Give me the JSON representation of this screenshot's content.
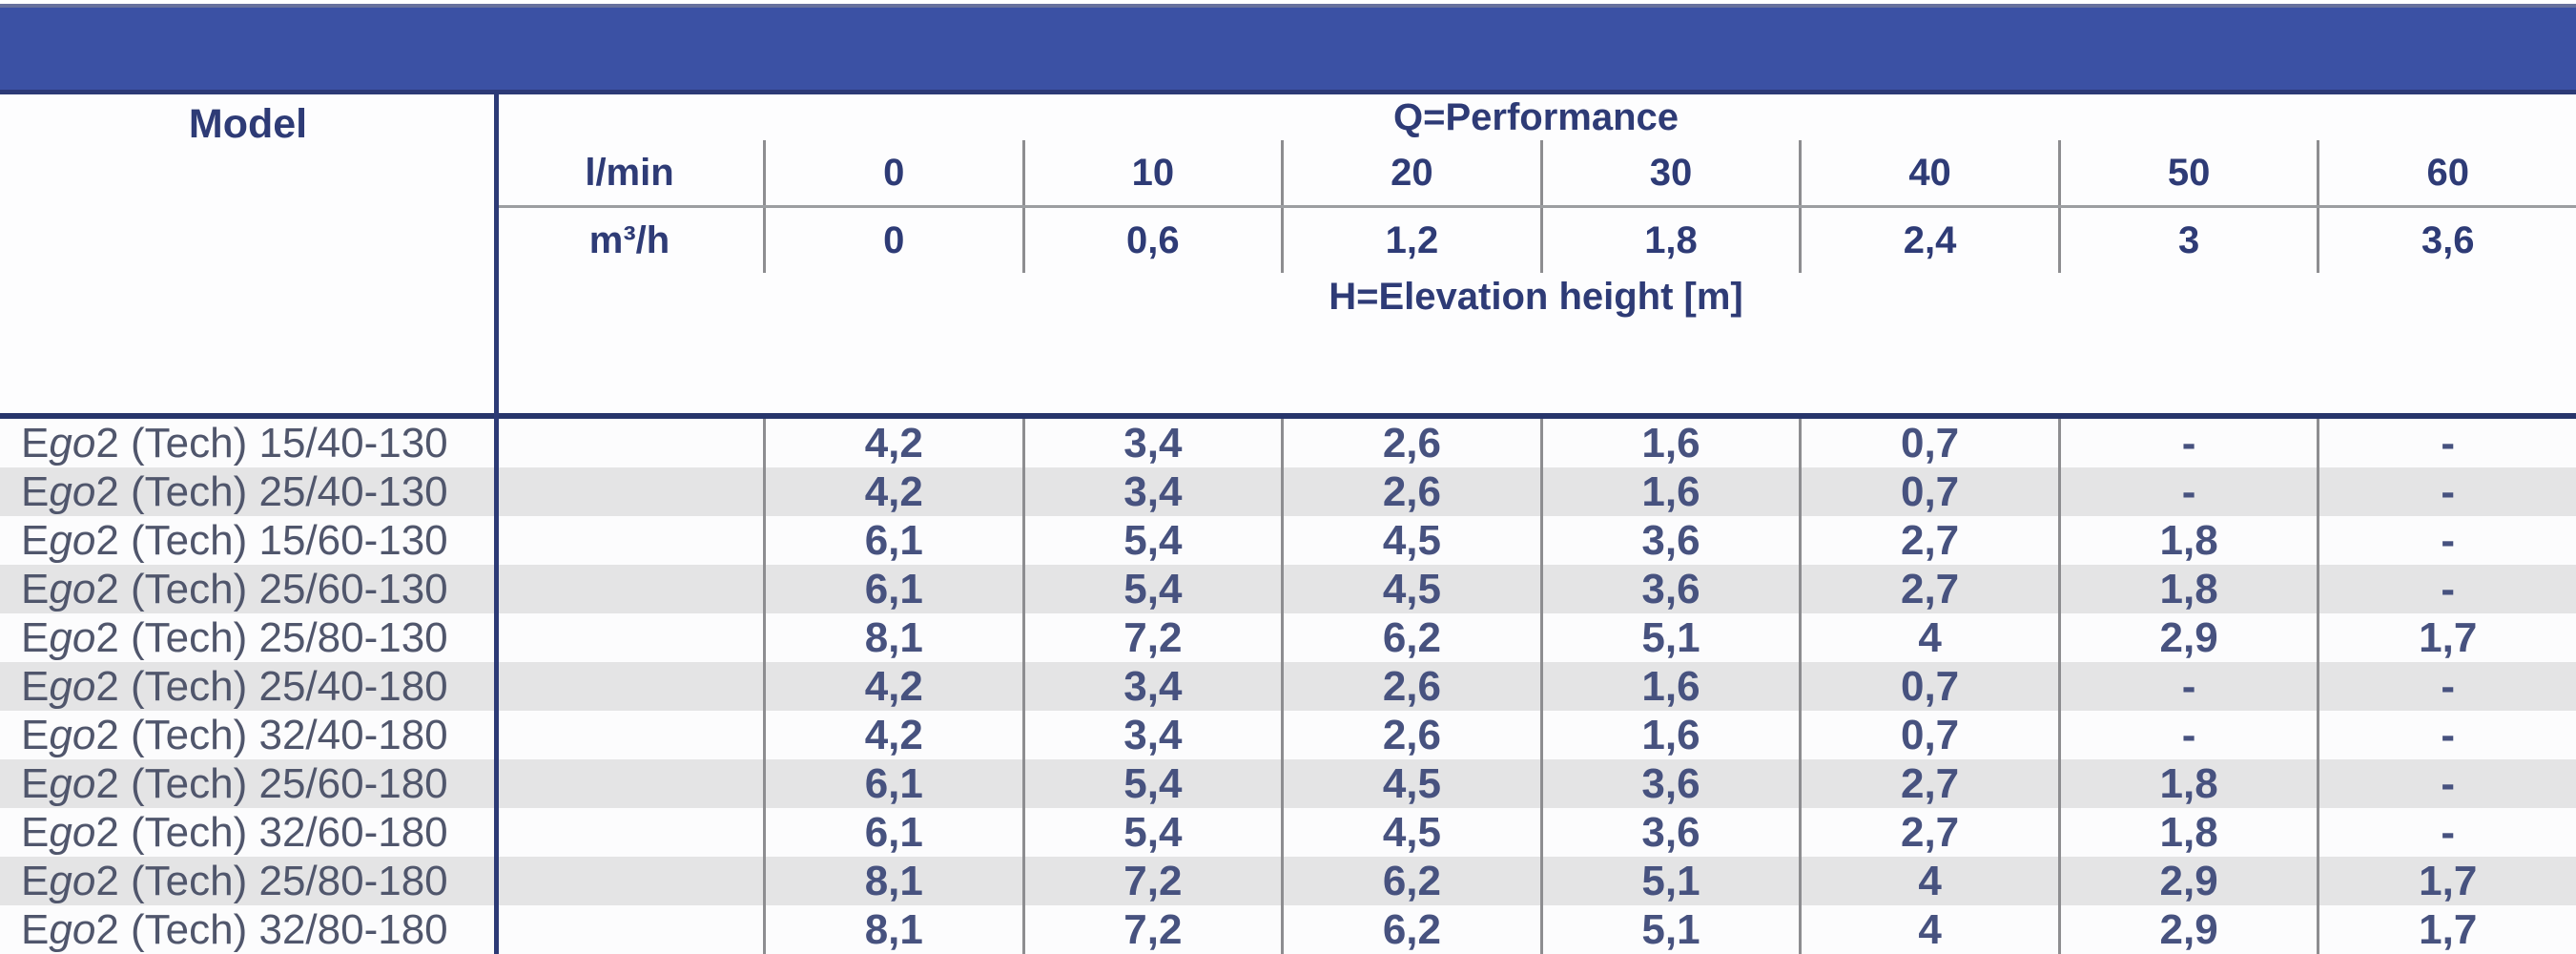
{
  "banner": {
    "color": "#3b51a4"
  },
  "table": {
    "model_header": "Model",
    "performance_header": "Q=Performance",
    "elevation_header": "H=Elevation height [m]",
    "flow_units": [
      {
        "unit": "l/min",
        "values": [
          "0",
          "10",
          "20",
          "30",
          "40",
          "50",
          "60"
        ]
      },
      {
        "unit": "m³/h",
        "values": [
          "0",
          "0,6",
          "1,2",
          "1,8",
          "2,4",
          "3",
          "3,6"
        ]
      }
    ],
    "rows": [
      {
        "model": "Ego 2 (Tech) 15/40-130",
        "values": [
          "4,2",
          "3,4",
          "2,6",
          "1,6",
          "0,7",
          "-",
          "-"
        ]
      },
      {
        "model": "Ego 2 (Tech) 25/40-130",
        "values": [
          "4,2",
          "3,4",
          "2,6",
          "1,6",
          "0,7",
          "-",
          "-"
        ]
      },
      {
        "model": "Ego 2 (Tech) 15/60-130",
        "values": [
          "6,1",
          "5,4",
          "4,5",
          "3,6",
          "2,7",
          "1,8",
          "-"
        ]
      },
      {
        "model": "Ego 2 (Tech) 25/60-130",
        "values": [
          "6,1",
          "5,4",
          "4,5",
          "3,6",
          "2,7",
          "1,8",
          "-"
        ]
      },
      {
        "model": "Ego 2 (Tech) 25/80-130",
        "values": [
          "8,1",
          "7,2",
          "6,2",
          "5,1",
          "4",
          "2,9",
          "1,7"
        ]
      },
      {
        "model": "Ego 2 (Tech) 25/40-180",
        "values": [
          "4,2",
          "3,4",
          "2,6",
          "1,6",
          "0,7",
          "-",
          "-"
        ]
      },
      {
        "model": "Ego 2 (Tech) 32/40-180",
        "values": [
          "4,2",
          "3,4",
          "2,6",
          "1,6",
          "0,7",
          "-",
          "-"
        ]
      },
      {
        "model": "Ego 2 (Tech) 25/60-180",
        "values": [
          "6,1",
          "5,4",
          "4,5",
          "3,6",
          "2,7",
          "1,8",
          "-"
        ]
      },
      {
        "model": "Ego 2 (Tech) 32/60-180",
        "values": [
          "6,1",
          "5,4",
          "4,5",
          "3,6",
          "2,7",
          "1,8",
          "-"
        ]
      },
      {
        "model": "Ego 2 (Tech) 25/80-180",
        "values": [
          "8,1",
          "7,2",
          "6,2",
          "5,1",
          "4",
          "2,9",
          "1,7"
        ]
      },
      {
        "model": "Ego 2 (Tech) 32/80-180",
        "values": [
          "8,1",
          "7,2",
          "6,2",
          "5,1",
          "4",
          "2,9",
          "1,7"
        ]
      }
    ]
  },
  "colors": {
    "banner_blue": "#3b51a4",
    "navy_line": "#2c3a76",
    "header_text": "#2e3b76",
    "model_text": "#50566c",
    "value_text": "#47527f",
    "stripe_gray": "#e4e4e5",
    "stripe_white": "#fcfcfd",
    "grid_gray": "#8d8d90"
  }
}
